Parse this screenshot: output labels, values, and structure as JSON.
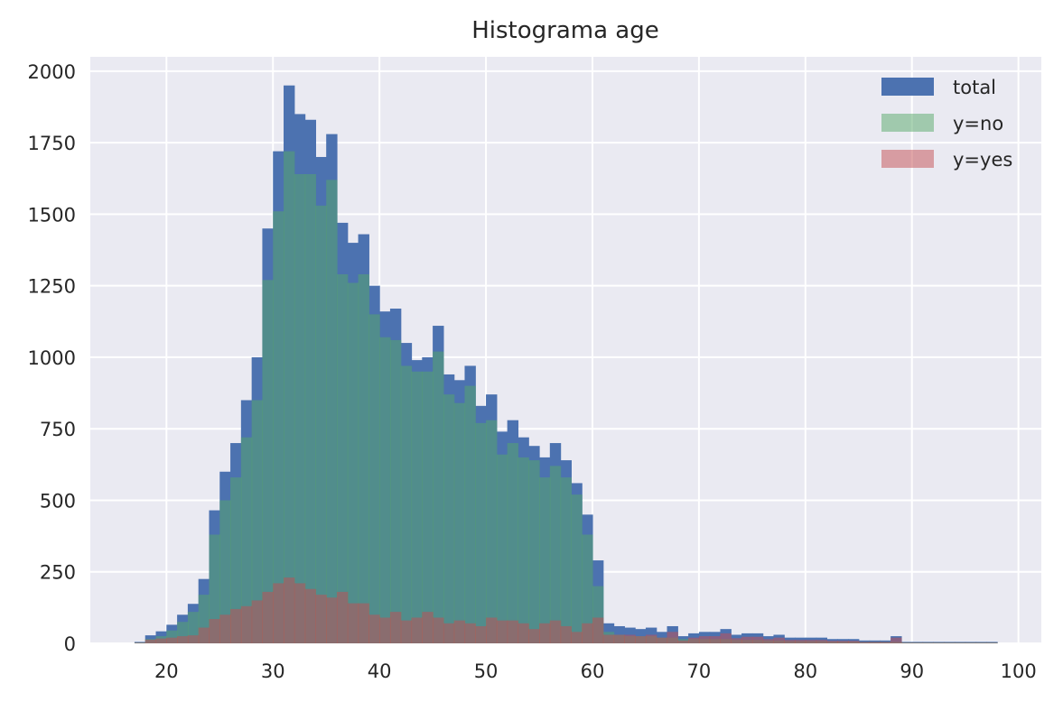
{
  "chart_data": {
    "type": "bar",
    "title": "Histograma age",
    "xlabel": "",
    "ylabel": "",
    "xlim": [
      12.85,
      102.15
    ],
    "ylim": [
      0,
      2050
    ],
    "xticks": [
      20,
      30,
      40,
      50,
      60,
      70,
      80,
      90,
      100
    ],
    "yticks": [
      0,
      250,
      500,
      750,
      1000,
      1250,
      1500,
      1750,
      2000
    ],
    "grid": true,
    "legend_position": "top-right",
    "bin_start": 17,
    "bin_width": 1,
    "series": [
      {
        "name": "total",
        "color": "#4c72b0",
        "opacity": 1.0,
        "values": [
          5,
          28,
          42,
          65,
          100,
          138,
          225,
          465,
          600,
          700,
          850,
          1000,
          1450,
          1720,
          1950,
          1850,
          1830,
          1700,
          1780,
          1470,
          1400,
          1430,
          1250,
          1160,
          1170,
          1050,
          990,
          1000,
          1110,
          940,
          920,
          970,
          830,
          870,
          740,
          780,
          720,
          690,
          650,
          700,
          640,
          560,
          450,
          290,
          70,
          60,
          55,
          50,
          55,
          40,
          60,
          25,
          35,
          40,
          40,
          50,
          30,
          35,
          35,
          25,
          30,
          20,
          20,
          20,
          20,
          15,
          15,
          15,
          10,
          10,
          10,
          25,
          5,
          5,
          5,
          5,
          5,
          5,
          5,
          5,
          5
        ]
      },
      {
        "name": "y=no",
        "color": "#55a868",
        "opacity": 0.5,
        "values": [
          3,
          15,
          25,
          45,
          75,
          110,
          170,
          380,
          500,
          580,
          720,
          850,
          1270,
          1510,
          1720,
          1640,
          1640,
          1530,
          1620,
          1290,
          1260,
          1290,
          1150,
          1070,
          1060,
          970,
          950,
          950,
          1020,
          870,
          840,
          900,
          770,
          780,
          660,
          700,
          650,
          640,
          580,
          620,
          580,
          520,
          380,
          200,
          40,
          30,
          25,
          25,
          25,
          20,
          20,
          15,
          15,
          15,
          15,
          15,
          12,
          12,
          12,
          10,
          10,
          8,
          8,
          8,
          8,
          6,
          6,
          6,
          5,
          5,
          5,
          5,
          3,
          3,
          3,
          3,
          3,
          3,
          3,
          3,
          3
        ]
      },
      {
        "name": "y=yes",
        "color": "#c44e52",
        "opacity": 0.5,
        "values": [
          2,
          13,
          17,
          20,
          25,
          28,
          55,
          85,
          100,
          120,
          130,
          150,
          180,
          210,
          230,
          210,
          190,
          170,
          160,
          180,
          140,
          140,
          100,
          90,
          110,
          80,
          90,
          110,
          90,
          70,
          80,
          70,
          60,
          90,
          80,
          80,
          70,
          50,
          70,
          80,
          60,
          40,
          70,
          90,
          30,
          30,
          30,
          25,
          30,
          20,
          40,
          10,
          20,
          25,
          25,
          35,
          18,
          23,
          23,
          15,
          20,
          12,
          12,
          12,
          12,
          9,
          9,
          9,
          5,
          5,
          5,
          20,
          2,
          2,
          2,
          2,
          2,
          2,
          2,
          2,
          2
        ]
      }
    ]
  }
}
